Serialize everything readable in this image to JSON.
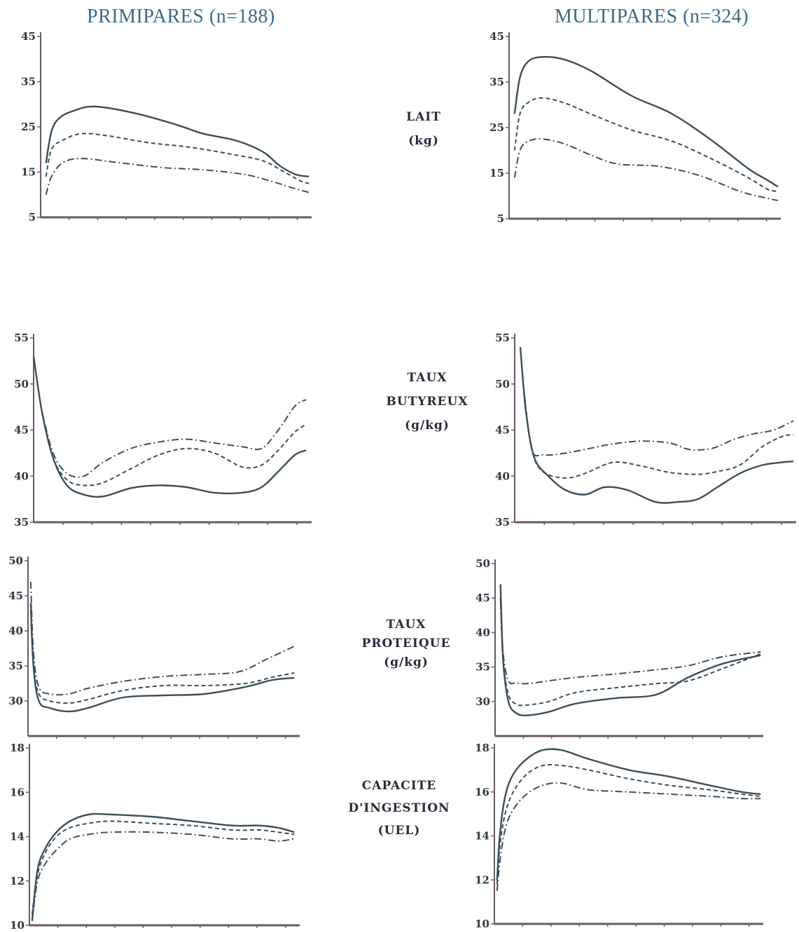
{
  "columns": [
    {
      "title": "PRIMIPARES (n=188)"
    },
    {
      "title": "MULTIPARES (n=324)"
    }
  ],
  "row_labels": [
    [
      "LAIT",
      "(kg)"
    ],
    [
      "TAUX",
      "BUTYREUX",
      "(g/kg)"
    ],
    [
      "TAUX",
      "PROTEIQUE",
      "(g/kg)"
    ],
    [
      "CAPACITE",
      "D'INGESTION",
      "(UEL)"
    ]
  ],
  "colors": {
    "curve": "#3d4e5a",
    "axis": "#6b5a66",
    "title": "#3a6a8c"
  },
  "chart_data": [
    {
      "type": "line",
      "panel": "lait-primipares",
      "ylim": [
        5,
        45
      ],
      "yticks": [
        5,
        15,
        25,
        35,
        45
      ],
      "xlim": [
        0,
        1
      ],
      "series": [
        {
          "style": "solid",
          "x": [
            0.02,
            0.04,
            0.07,
            0.12,
            0.2,
            0.35,
            0.5,
            0.6,
            0.72,
            0.82,
            0.88,
            0.94,
            0.99
          ],
          "y": [
            17,
            24,
            27,
            28.5,
            29.5,
            28,
            25.5,
            23.5,
            22,
            19.5,
            16.5,
            14.5,
            14
          ]
        },
        {
          "style": "dashed",
          "x": [
            0.02,
            0.04,
            0.08,
            0.15,
            0.25,
            0.4,
            0.55,
            0.7,
            0.82,
            0.9,
            0.96,
            0.99
          ],
          "y": [
            14,
            20,
            22,
            23.5,
            23,
            21.5,
            20.5,
            19,
            17.5,
            15,
            13,
            12.5
          ]
        },
        {
          "style": "dash-dot",
          "x": [
            0.02,
            0.04,
            0.08,
            0.15,
            0.3,
            0.45,
            0.6,
            0.75,
            0.85,
            0.93,
            0.99
          ],
          "y": [
            10,
            14,
            17,
            18,
            17,
            16,
            15.5,
            14.5,
            13,
            11.5,
            10.5
          ]
        }
      ]
    },
    {
      "type": "line",
      "panel": "lait-multipares",
      "ylim": [
        5,
        45
      ],
      "yticks": [
        5,
        15,
        25,
        35,
        45
      ],
      "xlim": [
        0,
        1
      ],
      "series": [
        {
          "style": "solid",
          "x": [
            0.02,
            0.04,
            0.07,
            0.12,
            0.2,
            0.3,
            0.45,
            0.6,
            0.75,
            0.88,
            0.95,
            0.99
          ],
          "y": [
            28,
            36,
            39.5,
            40.5,
            40,
            37.5,
            32,
            28,
            22,
            16,
            13.5,
            12
          ]
        },
        {
          "style": "dashed",
          "x": [
            0.02,
            0.04,
            0.07,
            0.12,
            0.2,
            0.3,
            0.45,
            0.6,
            0.75,
            0.88,
            0.95,
            0.99
          ],
          "y": [
            20,
            28,
            30.5,
            31.5,
            30.5,
            28,
            24.5,
            22,
            18,
            14,
            11.5,
            11
          ]
        },
        {
          "style": "dash-dot",
          "x": [
            0.02,
            0.04,
            0.07,
            0.12,
            0.2,
            0.3,
            0.4,
            0.55,
            0.7,
            0.85,
            0.95,
            0.99
          ],
          "y": [
            14,
            20,
            22,
            22.5,
            21.5,
            19,
            17,
            16.5,
            14.5,
            11,
            9.5,
            9
          ]
        }
      ]
    },
    {
      "type": "line",
      "panel": "taux-butyreux-primipares",
      "ylim": [
        35,
        55
      ],
      "yticks": [
        35,
        40,
        45,
        50,
        55
      ],
      "xlim": [
        0,
        1
      ],
      "series": [
        {
          "style": "solid",
          "x": [
            0.0,
            0.03,
            0.07,
            0.12,
            0.18,
            0.25,
            0.35,
            0.45,
            0.55,
            0.65,
            0.75,
            0.82,
            0.88,
            0.94,
            0.98
          ],
          "y": [
            53,
            47,
            42,
            39,
            38,
            37.8,
            38.7,
            39,
            38.8,
            38.2,
            38.2,
            38.8,
            40.5,
            42.3,
            42.8
          ]
        },
        {
          "style": "dashed",
          "x": [
            0.03,
            0.07,
            0.12,
            0.18,
            0.25,
            0.35,
            0.45,
            0.55,
            0.65,
            0.75,
            0.82,
            0.88,
            0.94,
            0.98
          ],
          "y": [
            47,
            42,
            39.6,
            39,
            39.3,
            40.8,
            42.3,
            43,
            42.5,
            41,
            41.2,
            42.8,
            44.8,
            45.6
          ]
        },
        {
          "style": "dash-dot",
          "x": [
            0.03,
            0.07,
            0.12,
            0.18,
            0.25,
            0.35,
            0.45,
            0.55,
            0.65,
            0.75,
            0.82,
            0.88,
            0.94,
            0.98
          ],
          "y": [
            47,
            42.5,
            40.3,
            40,
            41.5,
            43,
            43.7,
            44,
            43.6,
            43.2,
            43,
            45,
            47.6,
            48.3
          ]
        }
      ]
    },
    {
      "type": "line",
      "panel": "taux-butyreux-multipares",
      "ylim": [
        35,
        55
      ],
      "yticks": [
        35,
        40,
        45,
        50,
        55
      ],
      "xlim": [
        0,
        1
      ],
      "series": [
        {
          "style": "solid",
          "x": [
            0.02,
            0.04,
            0.07,
            0.12,
            0.18,
            0.25,
            0.32,
            0.4,
            0.5,
            0.58,
            0.65,
            0.72,
            0.8,
            0.88,
            0.95,
            0.99
          ],
          "y": [
            54,
            47,
            42,
            40,
            38.5,
            38,
            38.8,
            38.5,
            37.2,
            37.2,
            37.5,
            38.8,
            40.3,
            41.2,
            41.5,
            41.6
          ]
        },
        {
          "style": "dashed",
          "x": [
            0.03,
            0.06,
            0.1,
            0.18,
            0.25,
            0.35,
            0.45,
            0.55,
            0.65,
            0.72,
            0.8,
            0.88,
            0.95,
            0.99
          ],
          "y": [
            50,
            43,
            40.5,
            39.8,
            40.3,
            41.5,
            41.1,
            40.4,
            40.2,
            40.5,
            41.2,
            43.2,
            44.3,
            44.5
          ]
        },
        {
          "style": "dash-dot",
          "x": [
            0.03,
            0.06,
            0.1,
            0.18,
            0.25,
            0.35,
            0.45,
            0.55,
            0.62,
            0.7,
            0.78,
            0.85,
            0.92,
            0.99
          ],
          "y": [
            50,
            43,
            42.3,
            42.5,
            42.9,
            43.5,
            43.8,
            43.6,
            42.9,
            43,
            44,
            44.6,
            45,
            46
          ]
        }
      ]
    },
    {
      "type": "line",
      "panel": "taux-proteique-primipares",
      "ylim": [
        25,
        50
      ],
      "yticks": [
        30,
        35,
        40,
        45,
        50
      ],
      "xlim": [
        0,
        1
      ],
      "series": [
        {
          "style": "solid",
          "x": [
            0.01,
            0.02,
            0.04,
            0.08,
            0.15,
            0.22,
            0.35,
            0.5,
            0.65,
            0.8,
            0.9,
            0.98
          ],
          "y": [
            44,
            35,
            30,
            29,
            28.5,
            29,
            30.5,
            30.8,
            31,
            32,
            33,
            33.3
          ]
        },
        {
          "style": "dashed",
          "x": [
            0.01,
            0.02,
            0.04,
            0.08,
            0.15,
            0.22,
            0.35,
            0.5,
            0.65,
            0.8,
            0.9,
            0.98
          ],
          "y": [
            43,
            35,
            31,
            30,
            29.7,
            30.2,
            31.5,
            32.2,
            32.2,
            32.5,
            33.4,
            34
          ]
        },
        {
          "style": "dash-dot",
          "x": [
            0.01,
            0.02,
            0.04,
            0.08,
            0.15,
            0.22,
            0.35,
            0.5,
            0.65,
            0.78,
            0.88,
            0.98
          ],
          "y": [
            47,
            37,
            32,
            31,
            31,
            31.8,
            32.8,
            33.5,
            33.8,
            34.2,
            36,
            37.8
          ]
        }
      ]
    },
    {
      "type": "line",
      "panel": "taux-proteique-multipares",
      "ylim": [
        25,
        50
      ],
      "yticks": [
        30,
        35,
        40,
        45,
        50
      ],
      "xlim": [
        0,
        1
      ],
      "series": [
        {
          "style": "solid",
          "x": [
            0.02,
            0.03,
            0.05,
            0.08,
            0.12,
            0.2,
            0.3,
            0.45,
            0.6,
            0.72,
            0.85,
            0.99
          ],
          "y": [
            47,
            36,
            30,
            28.3,
            28,
            28.5,
            29.7,
            30.5,
            31,
            33.5,
            35.5,
            36.7
          ]
        },
        {
          "style": "dashed",
          "x": [
            0.02,
            0.03,
            0.05,
            0.08,
            0.12,
            0.2,
            0.3,
            0.45,
            0.6,
            0.72,
            0.85,
            0.99
          ],
          "y": [
            45,
            36,
            31,
            29.6,
            29.5,
            30,
            31.3,
            32,
            32.6,
            33,
            34.8,
            36.9
          ]
        },
        {
          "style": "dash-dot",
          "x": [
            0.02,
            0.03,
            0.05,
            0.08,
            0.12,
            0.2,
            0.3,
            0.45,
            0.6,
            0.72,
            0.85,
            0.99
          ],
          "y": [
            45,
            37,
            33,
            32.7,
            32.6,
            33,
            33.5,
            34,
            34.6,
            35.2,
            36.5,
            37.2
          ]
        }
      ]
    },
    {
      "type": "line",
      "panel": "capacite-ingestion-primipares",
      "ylim": [
        10,
        18
      ],
      "yticks": [
        10,
        12,
        14,
        16,
        18
      ],
      "xlim": [
        0,
        1
      ],
      "series": [
        {
          "style": "solid",
          "x": [
            0.01,
            0.03,
            0.06,
            0.1,
            0.15,
            0.22,
            0.3,
            0.45,
            0.6,
            0.75,
            0.85,
            0.92,
            0.98
          ],
          "y": [
            10.2,
            12.5,
            13.5,
            14.2,
            14.7,
            15,
            15,
            14.9,
            14.7,
            14.5,
            14.5,
            14.4,
            14.2
          ]
        },
        {
          "style": "dashed",
          "x": [
            0.01,
            0.03,
            0.06,
            0.1,
            0.15,
            0.22,
            0.3,
            0.45,
            0.6,
            0.75,
            0.85,
            0.92,
            0.98
          ],
          "y": [
            10.5,
            12.3,
            13.3,
            14,
            14.4,
            14.6,
            14.7,
            14.6,
            14.5,
            14.3,
            14.3,
            14.2,
            14.1
          ]
        },
        {
          "style": "dash-dot",
          "x": [
            0.01,
            0.03,
            0.06,
            0.1,
            0.15,
            0.22,
            0.3,
            0.45,
            0.6,
            0.75,
            0.85,
            0.92,
            0.98
          ],
          "y": [
            10.2,
            12,
            12.8,
            13.4,
            13.9,
            14.1,
            14.2,
            14.2,
            14.1,
            13.9,
            13.9,
            13.8,
            13.9
          ]
        }
      ]
    },
    {
      "type": "line",
      "panel": "capacite-ingestion-multipares",
      "ylim": [
        10,
        18
      ],
      "yticks": [
        10,
        12,
        14,
        16,
        18
      ],
      "xlim": [
        0,
        1
      ],
      "series": [
        {
          "style": "solid",
          "x": [
            0.01,
            0.02,
            0.04,
            0.07,
            0.12,
            0.18,
            0.25,
            0.35,
            0.5,
            0.65,
            0.8,
            0.92,
            0.99
          ],
          "y": [
            12,
            14,
            15.8,
            16.8,
            17.5,
            17.9,
            17.9,
            17.5,
            17,
            16.7,
            16.3,
            16,
            15.9
          ]
        },
        {
          "style": "dashed",
          "x": [
            0.01,
            0.02,
            0.04,
            0.07,
            0.12,
            0.18,
            0.25,
            0.35,
            0.5,
            0.65,
            0.8,
            0.92,
            0.99
          ],
          "y": [
            11.8,
            13.5,
            15,
            16,
            16.8,
            17.2,
            17.2,
            17,
            16.6,
            16.3,
            16.1,
            15.9,
            15.8
          ]
        },
        {
          "style": "dash-dot",
          "x": [
            0.01,
            0.02,
            0.04,
            0.07,
            0.12,
            0.18,
            0.25,
            0.35,
            0.5,
            0.65,
            0.8,
            0.92,
            0.99
          ],
          "y": [
            11.5,
            12.8,
            14.3,
            15.2,
            15.9,
            16.3,
            16.4,
            16.1,
            16,
            15.9,
            15.8,
            15.7,
            15.7
          ]
        }
      ]
    }
  ]
}
